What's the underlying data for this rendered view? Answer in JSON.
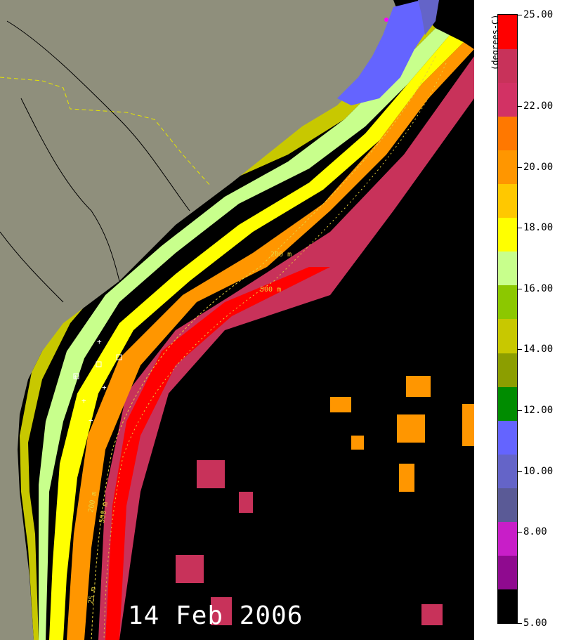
{
  "map": {
    "date": "14 Feb 2006",
    "land_color": "#8f8f7c",
    "ocean_nodata_color": "#000000",
    "contour_labels": [
      "200 m",
      "500 m",
      "200 m",
      "500 m",
      "200 m",
      "500 m",
      "25 m"
    ]
  },
  "legend": {
    "units": "(degrees-C)",
    "min": 5.0,
    "max": 25.0,
    "ticks": [
      "5.00",
      "8.00",
      "10.00",
      "12.00",
      "14.00",
      "16.00",
      "18.00",
      "20.00",
      "22.00",
      "25.00"
    ],
    "tick_values": [
      5,
      8,
      10,
      12,
      14,
      16,
      18,
      20,
      22,
      25
    ],
    "color_bands": [
      "#000000",
      "#8f0a8f",
      "#c81ec8",
      "#5a5a96",
      "#6464c8",
      "#6464ff",
      "#008c00",
      "#8c9e00",
      "#c8c800",
      "#8cc800",
      "#c8ff8c",
      "#ffff00",
      "#ffc800",
      "#ff9600",
      "#ff7800",
      "#d23264",
      "#c8325a",
      "#ff0000"
    ]
  }
}
